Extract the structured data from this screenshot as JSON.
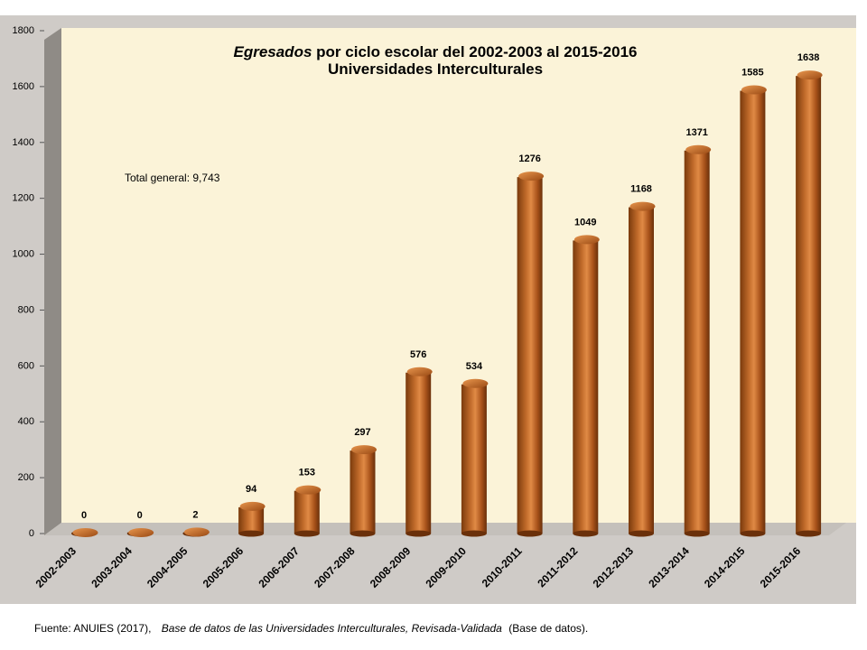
{
  "chart_data": {
    "type": "bar",
    "title_italic": "Egresados",
    "title_rest": "por ciclo escolar del  2002-2003 al  2015-2016",
    "subtitle": "Universidades Interculturales",
    "annotation": "Total general: 9,743",
    "categories": [
      "2002-2003",
      "2003-2004",
      "2004-2005",
      "2005-2006",
      "2006-2007",
      "2007-2008",
      "2008-2009",
      "2009-2010",
      "2010-2011",
      "2011-2012",
      "2012-2013",
      "2013-2014",
      "2014-2015",
      "2015-2016"
    ],
    "values": [
      0,
      0,
      2,
      94,
      153,
      297,
      576,
      534,
      1276,
      1049,
      1168,
      1371,
      1585,
      1638
    ],
    "ylim": [
      0,
      1800
    ],
    "yticks": [
      0,
      200,
      400,
      600,
      800,
      1000,
      1200,
      1400,
      1600,
      1800
    ],
    "grid": false,
    "bar_color": "#a8521a",
    "bar_highlight": "#e08a45",
    "wall_color": "#fbf3d8",
    "floor_color": "#c4c0bb",
    "frame_color": "#cfcbc7"
  },
  "footer": {
    "prefix": "Fuente: ANUIES (2017),",
    "italic": "Base de datos de las Universidades  Interculturales, Revisada-Validada",
    "suffix": "(Base de datos)."
  }
}
